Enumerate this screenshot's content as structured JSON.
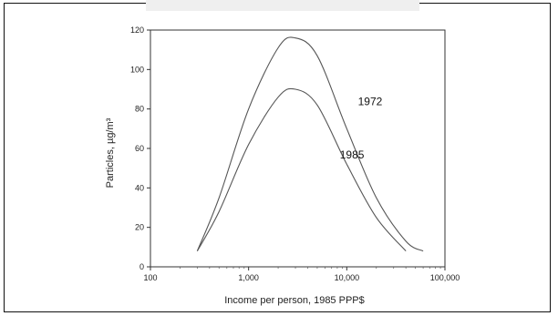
{
  "chart_data": {
    "type": "line",
    "xlabel": "Income per person, 1985 PPP$",
    "ylabel": "Particles, µg/m³",
    "xscale": "log",
    "xlim": [
      100,
      100000
    ],
    "ylim": [
      0,
      120
    ],
    "x_ticks": [
      100,
      1000,
      10000,
      100000
    ],
    "x_tick_labels": [
      "100",
      "1,000",
      "10,000",
      "100,000"
    ],
    "y_ticks": [
      0,
      20,
      40,
      60,
      80,
      100,
      120
    ],
    "y_tick_labels": [
      "0",
      "20",
      "40",
      "60",
      "80",
      "100",
      "120"
    ],
    "grid": false,
    "legend": "none",
    "series": [
      {
        "name": "1972",
        "x": [
          300,
          500,
          1000,
          2000,
          3000,
          5000,
          10000,
          20000,
          40000,
          60000
        ],
        "y": [
          8,
          35,
          80,
          111,
          116,
          107,
          70,
          35,
          13,
          8
        ]
      },
      {
        "name": "1985",
        "x": [
          300,
          500,
          1000,
          2000,
          3000,
          5000,
          10000,
          20000,
          40000
        ],
        "y": [
          8,
          28,
          62,
          86,
          90,
          82,
          52,
          25,
          8
        ]
      }
    ],
    "series_label_positions": [
      {
        "series": "1972",
        "x": 13000,
        "y": 82
      },
      {
        "series": "1985",
        "x": 8500,
        "y": 55
      }
    ]
  }
}
